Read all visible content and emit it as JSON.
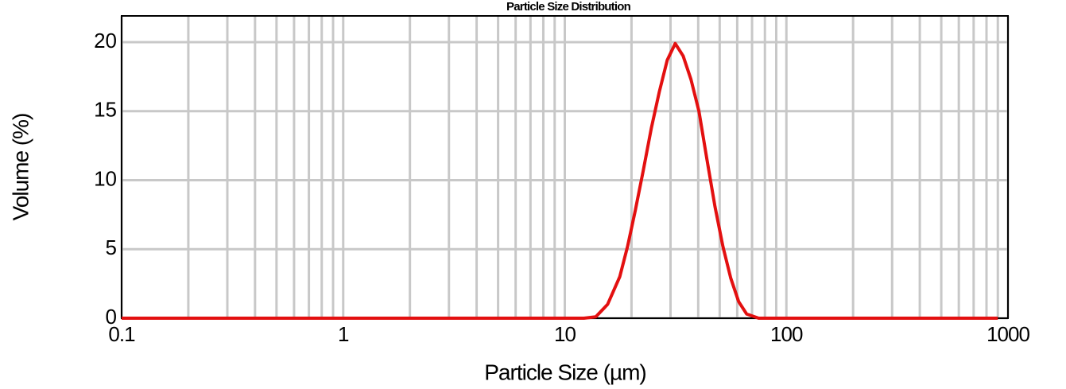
{
  "chart_data": {
    "type": "line",
    "title": "Particle Size Distribution",
    "x_label": "Particle Size (µm)",
    "y_label": "Volume (%)",
    "x_scale": "log",
    "x": [
      0.1,
      12.2,
      13.8,
      15.6,
      17.7,
      19.2,
      20.8,
      22.6,
      24.6,
      26.7,
      29.0,
      31.5,
      34.2,
      37.1,
      40.3,
      43.8,
      47.6,
      51.7,
      56.1,
      60.9,
      66.2,
      75,
      900
    ],
    "series": [
      {
        "name": "Volume",
        "color": "#e31010",
        "values": [
          0,
          0,
          0.1,
          1.0,
          3.0,
          5.2,
          7.8,
          10.7,
          13.8,
          16.4,
          18.7,
          19.9,
          19.0,
          17.3,
          15.0,
          11.5,
          8.1,
          5.2,
          2.9,
          1.2,
          0.3,
          0,
          0
        ]
      }
    ],
    "xlim": [
      0.1,
      1000
    ],
    "xticks": [
      0.1,
      1,
      10,
      100,
      1000
    ],
    "xminorticks": [
      0.2,
      0.3,
      0.4,
      0.5,
      0.6,
      0.7,
      0.8,
      0.9,
      2,
      3,
      4,
      5,
      6,
      7,
      8,
      9,
      20,
      30,
      40,
      50,
      60,
      70,
      80,
      90,
      200,
      300,
      400,
      500,
      600,
      700,
      800,
      900
    ],
    "ylim": [
      0,
      21.9
    ],
    "yticks": [
      0,
      5,
      10,
      15,
      20
    ],
    "grid": true
  }
}
